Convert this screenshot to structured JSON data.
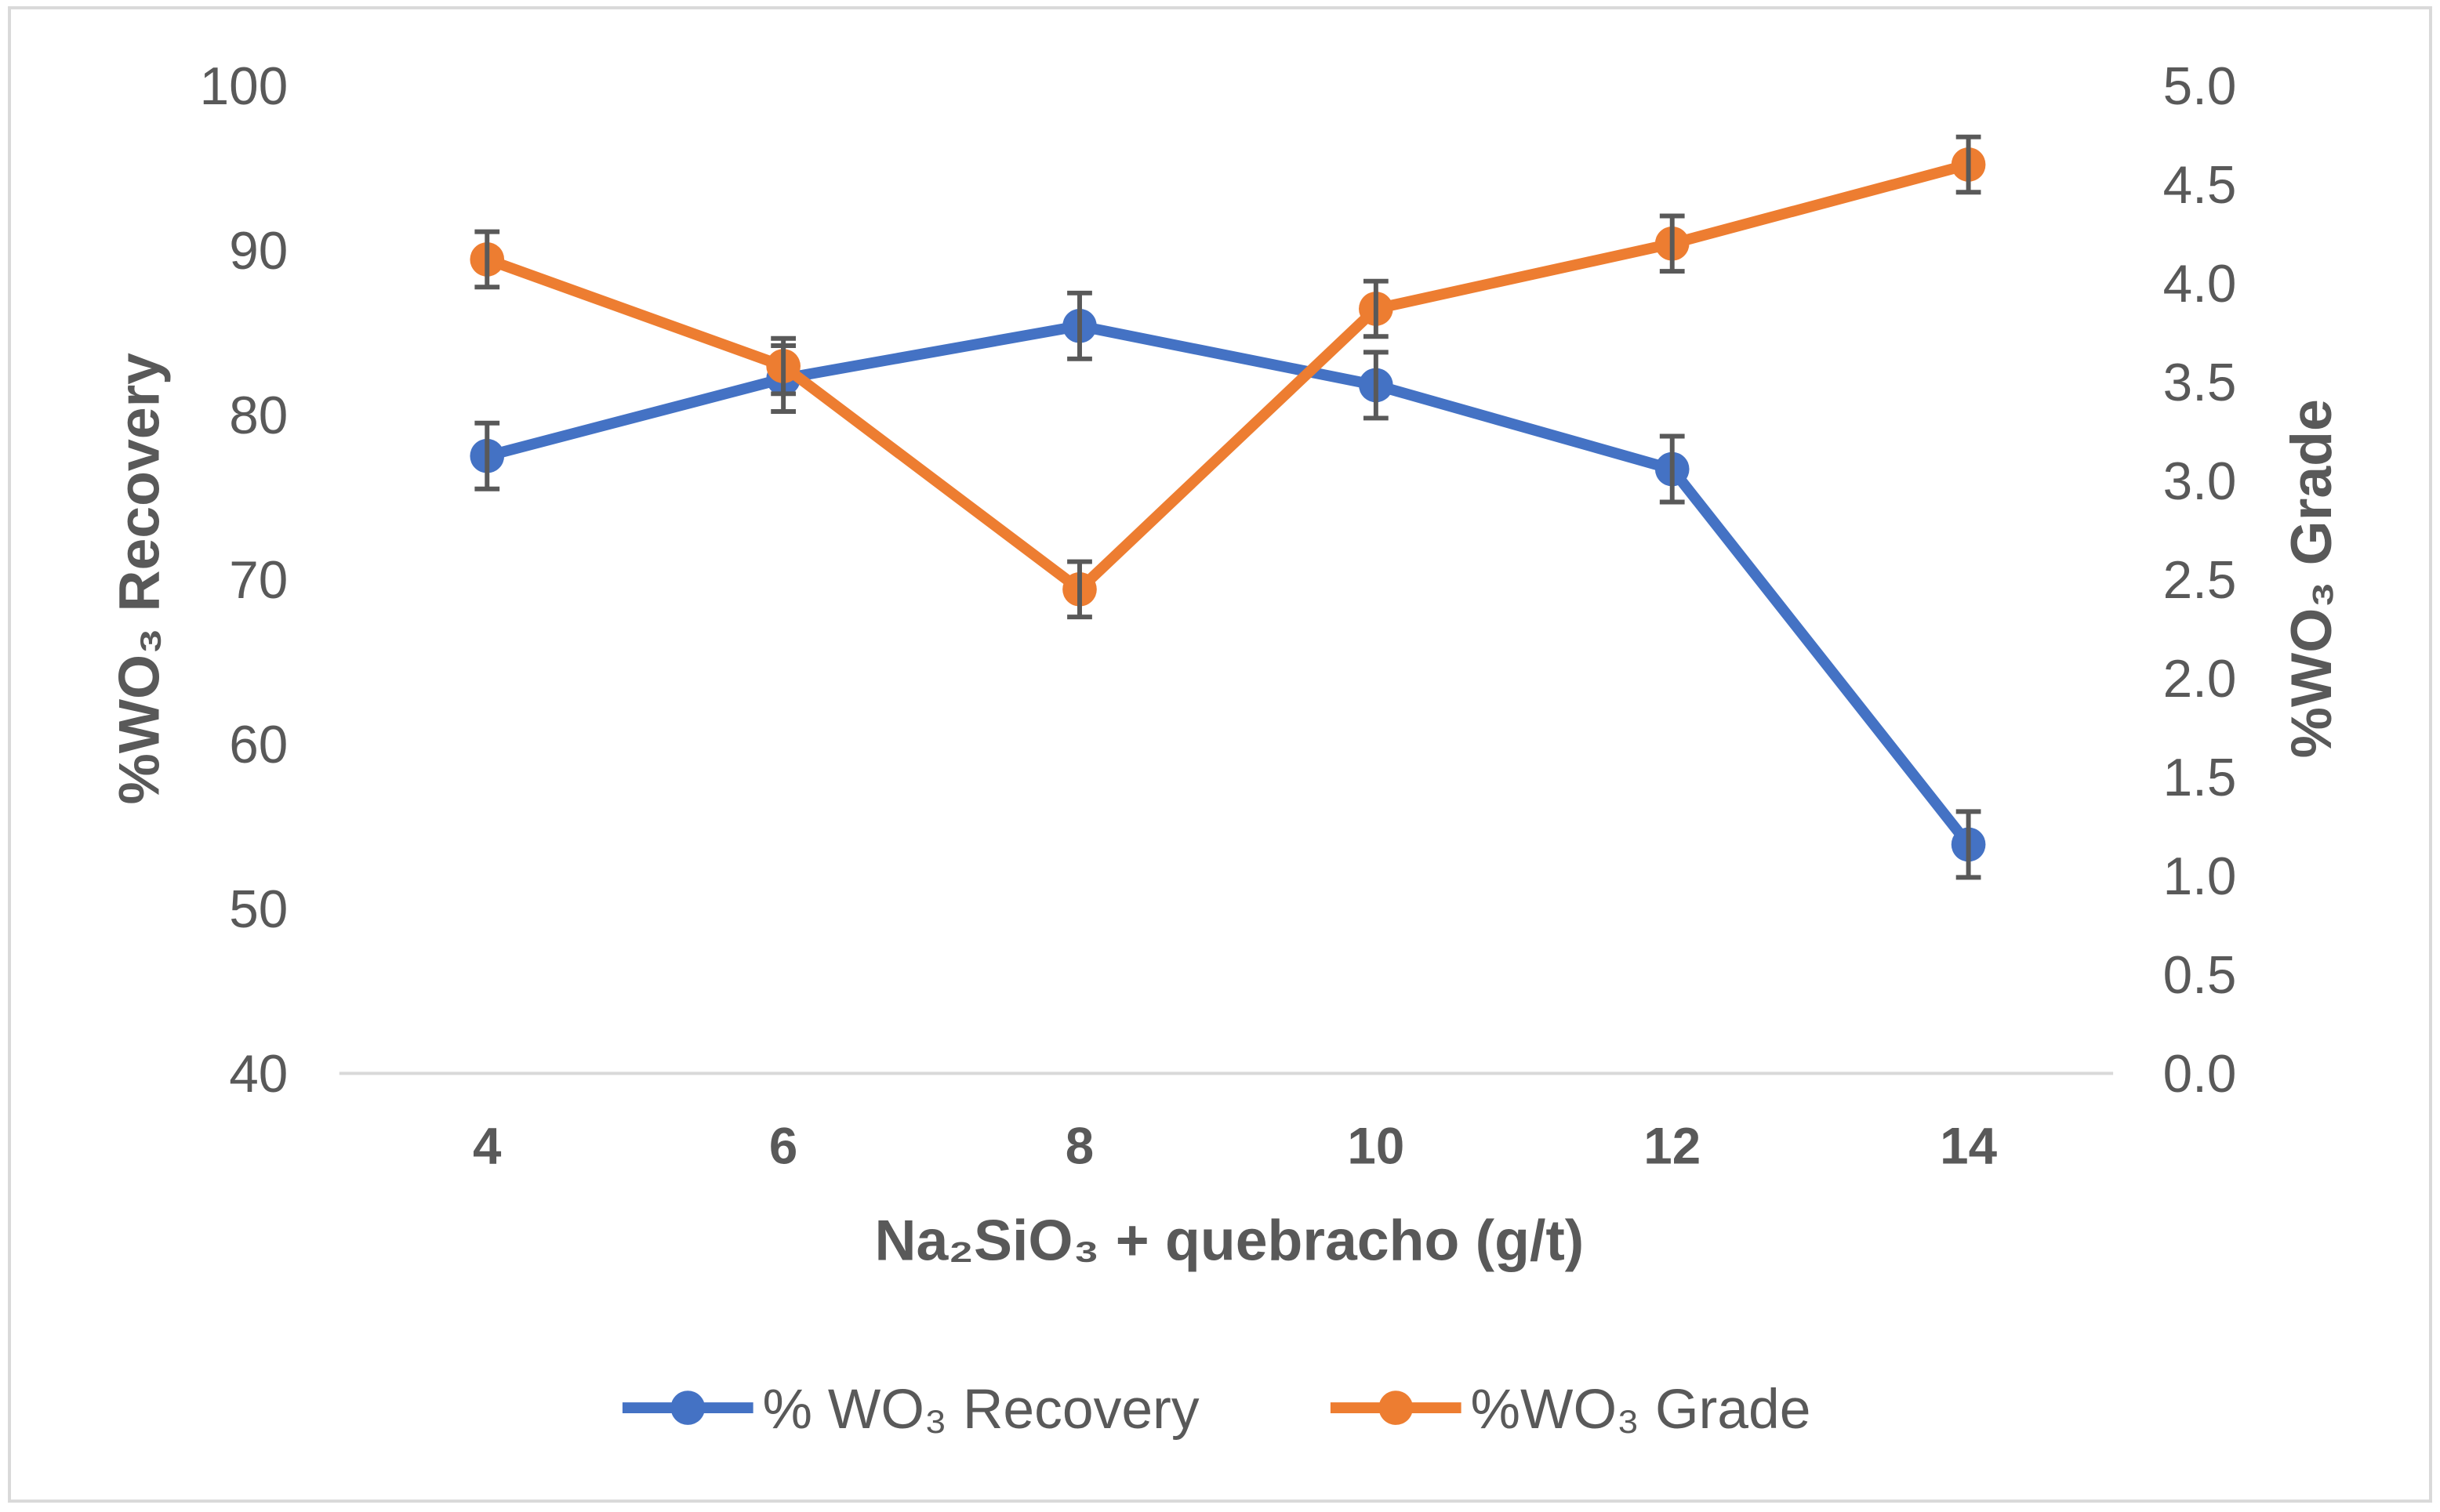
{
  "chart_data": {
    "type": "line",
    "title": "",
    "xlabel": "Na₂SiO₃  + quebracho (g/t)",
    "ylabel": "%WO₃ Recovery",
    "y2label": "%WO₃ Grade",
    "x": [
      4,
      6,
      8,
      10,
      12,
      14
    ],
    "x_tick_labels": [
      "4",
      "6",
      "8",
      "10",
      "12",
      "14"
    ],
    "ylim": [
      40,
      100
    ],
    "y_ticks": [
      "40",
      "50",
      "60",
      "70",
      "80",
      "90",
      "100"
    ],
    "y2lim": [
      0,
      5
    ],
    "y2_ticks": [
      "0.0",
      "0.5",
      "1.0",
      "1.5",
      "2.0",
      "2.5",
      "3.0",
      "3.5",
      "4.0",
      "4.5",
      "5.0"
    ],
    "grid": false,
    "legend_position": "bottom",
    "series": [
      {
        "name": "% WO₃ Recovery",
        "axis": "left",
        "color": "#4472C4",
        "values": [
          77.5,
          82.2,
          85.4,
          81.8,
          76.7,
          53.9
        ],
        "error": [
          2.0,
          2.0,
          2.0,
          2.0,
          2.0,
          2.0
        ]
      },
      {
        "name": "%WO₃ Grade",
        "axis": "right",
        "color": "#ED7D31",
        "values": [
          4.12,
          3.58,
          2.45,
          3.87,
          4.2,
          4.6
        ],
        "error": [
          0.14,
          0.14,
          0.14,
          0.14,
          0.14,
          0.14
        ]
      }
    ]
  }
}
